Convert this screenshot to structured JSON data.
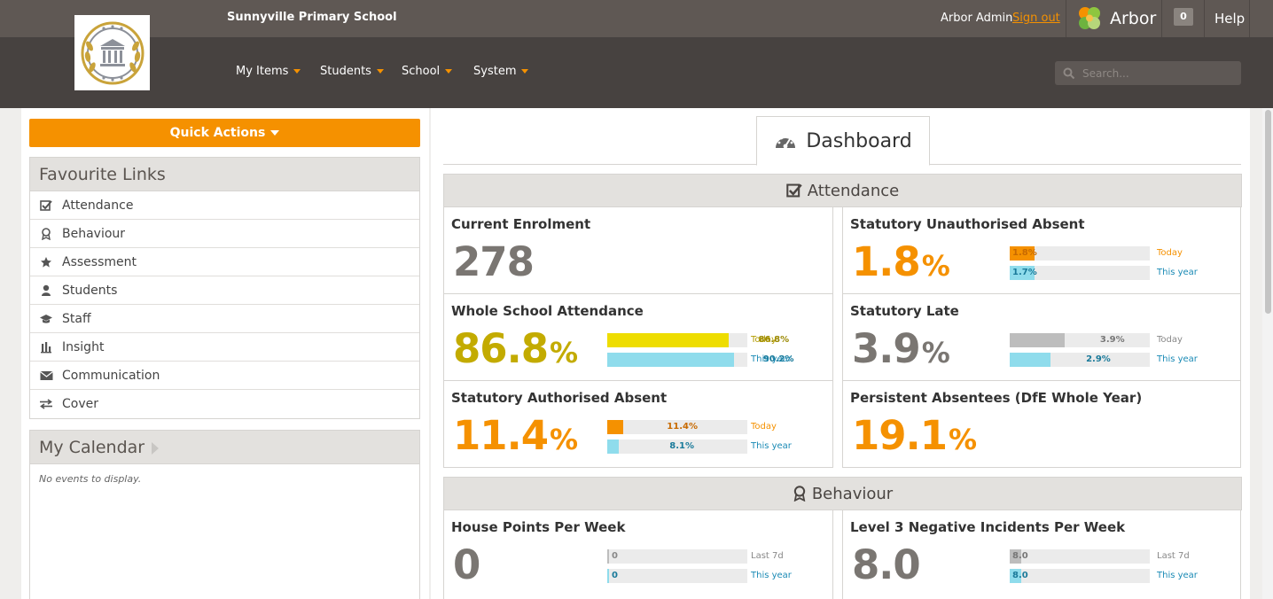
{
  "app": {
    "school_name": "Sunnyville Primary School",
    "user": "Arbor Admin",
    "sign_out": "Sign out",
    "brand": "Arbor",
    "notifications": "0",
    "help": "Help"
  },
  "nav": {
    "items": [
      {
        "label": "My Items"
      },
      {
        "label": "Students"
      },
      {
        "label": "School"
      },
      {
        "label": "System"
      }
    ],
    "search_placeholder": "Search..."
  },
  "sidebar": {
    "quick_actions": "Quick Actions",
    "favourites_title": "Favourite Links",
    "favourites": [
      {
        "label": "Attendance",
        "icon": "check-square-icon"
      },
      {
        "label": "Behaviour",
        "icon": "award-icon"
      },
      {
        "label": "Assessment",
        "icon": "star-icon"
      },
      {
        "label": "Students",
        "icon": "user-icon"
      },
      {
        "label": "Staff",
        "icon": "mortarboard-icon"
      },
      {
        "label": "Insight",
        "icon": "bar-chart-icon"
      },
      {
        "label": "Communication",
        "icon": "envelope-icon"
      },
      {
        "label": "Cover",
        "icon": "exchange-icon"
      }
    ],
    "calendar_title": "My Calendar",
    "calendar_empty": "No events to display."
  },
  "dashboard": {
    "tab_label": "Dashboard",
    "sections": {
      "attendance": "Attendance",
      "behaviour": "Behaviour"
    },
    "cards": {
      "enrolment": {
        "title": "Current Enrolment",
        "value": "278"
      },
      "unauth": {
        "title": "Statutory Unauthorised Absent",
        "value": "1.8",
        "unit": "%",
        "today": {
          "text": "1.8%",
          "label": "Today",
          "fraction": 0.18
        },
        "year": {
          "text": "1.7%",
          "label": "This year",
          "fraction": 0.17
        }
      },
      "whole": {
        "title": "Whole School Attendance",
        "value": "86.8",
        "unit": "%",
        "today": {
          "text": "86.8%",
          "label": "Today",
          "fraction": 0.868
        },
        "year": {
          "text": "90.2%",
          "label": "This year",
          "fraction": 0.902
        }
      },
      "late": {
        "title": "Statutory Late",
        "value": "3.9",
        "unit": "%",
        "today": {
          "text": "3.9%",
          "label": "Today",
          "fraction": 0.39
        },
        "year": {
          "text": "2.9%",
          "label": "This year",
          "fraction": 0.29
        }
      },
      "auth": {
        "title": "Statutory Authorised Absent",
        "value": "11.4",
        "unit": "%",
        "today": {
          "text": "11.4%",
          "label": "Today",
          "fraction": 0.114
        },
        "year": {
          "text": "8.1%",
          "label": "This year",
          "fraction": 0.081
        }
      },
      "persistent": {
        "title": "Persistent Absentees (DfE Whole Year)",
        "value": "19.1",
        "unit": "%"
      },
      "house": {
        "title": "House Points Per Week",
        "value": "0",
        "today": {
          "text": "0",
          "label": "Last 7d",
          "fraction": 0.0
        },
        "year": {
          "text": "0",
          "label": "This year",
          "fraction": 0.0
        }
      },
      "level3": {
        "title": "Level 3 Negative Incidents Per Week",
        "value": "8.0",
        "today": {
          "text": "8.0",
          "label": "Last 7d",
          "fraction": 0.08
        },
        "year": {
          "text": "8.0",
          "label": "This year",
          "fraction": 0.08
        }
      }
    }
  },
  "colors": {
    "accent": "#f59100",
    "olive": "#c3ab00",
    "yellow_bar": "#eedd00",
    "blue_bar": "#8fdcec",
    "gray_bar": "#bdbdbd",
    "orange_bar": "#f59100"
  }
}
